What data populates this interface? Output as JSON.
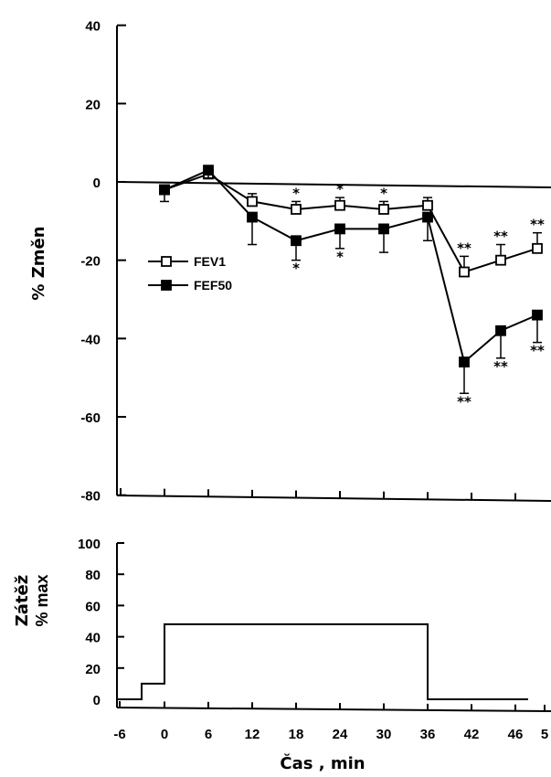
{
  "chart_data": [
    {
      "type": "line",
      "ylabel": "% Změn",
      "ylim": [
        -80,
        40
      ],
      "yticks": [
        40,
        20,
        0,
        -20,
        -40,
        -60,
        -80
      ],
      "xlim": [
        -6,
        54
      ],
      "reference_line": 0,
      "legend_position": "center-left",
      "series": [
        {
          "name": "FEV1",
          "marker": "open-square",
          "x": [
            0,
            6,
            12,
            18,
            24,
            30,
            36,
            41,
            46,
            51
          ],
          "y": [
            -2,
            2,
            -5,
            -7,
            -6,
            -7,
            -6,
            -23,
            -20,
            -17
          ],
          "error": [
            0,
            0,
            2,
            2,
            2,
            2,
            2,
            4,
            4,
            4
          ],
          "significance": [
            "",
            "",
            "",
            "*",
            "*",
            "*",
            "",
            "**",
            "**",
            "**"
          ]
        },
        {
          "name": "FEF50",
          "marker": "filled-square",
          "x": [
            0,
            6,
            12,
            18,
            24,
            30,
            36,
            41,
            46,
            51
          ],
          "y": [
            -2,
            3,
            -9,
            -15,
            -12,
            -12,
            -9,
            -46,
            -38,
            -34
          ],
          "error": [
            3,
            2,
            7,
            5,
            5,
            6,
            6,
            8,
            7,
            7
          ],
          "significance": [
            "",
            "",
            "",
            "*",
            "*",
            "",
            "",
            "**",
            "**",
            "**"
          ]
        }
      ]
    },
    {
      "type": "line",
      "ylabel_line1": "Zátěž",
      "ylabel_line2": "% max",
      "xlabel": "Čas , min",
      "ylim": [
        0,
        100
      ],
      "yticks": [
        100,
        80,
        60,
        40,
        20,
        0
      ],
      "xlim": [
        -6,
        54
      ],
      "xticks": [
        "-6",
        "0",
        "6",
        "12",
        "18",
        "24",
        "30",
        "36",
        "42",
        "46",
        "5"
      ],
      "series": [
        {
          "name": "",
          "step_x": [
            -6,
            -3,
            -3,
            0,
            0,
            36,
            36,
            50
          ],
          "step_y": [
            0,
            0,
            10,
            10,
            48,
            48,
            0,
            0
          ]
        }
      ]
    }
  ]
}
